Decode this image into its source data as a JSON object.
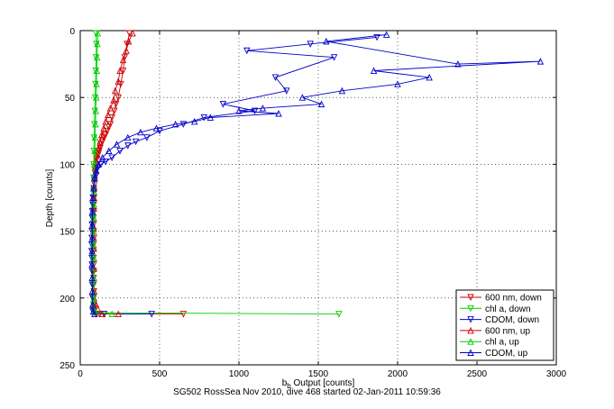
{
  "chart_data": {
    "type": "scatter",
    "xlabel": "b_b Output [counts]",
    "xlabel_main": "b",
    "xlabel_sub": "b",
    "xlabel_rest": " Output [counts]",
    "ylabel": "Depth [counts]",
    "footer": "SG502 RossSea Nov 2010, dive 468 started 02-Jan-2011 10:59:36",
    "xlim": [
      0,
      3000
    ],
    "ylim": [
      0,
      250
    ],
    "y_reversed": true,
    "grid": true,
    "legend_position": "bottom-right",
    "x_ticks": [
      0,
      500,
      1000,
      1500,
      2000,
      2500,
      3000
    ],
    "y_ticks": [
      0,
      50,
      100,
      150,
      200,
      250
    ],
    "series": [
      {
        "name": "600 nm, down",
        "color": "#cc0000",
        "marker": "down",
        "x": [
          310,
          295,
          280,
          270,
          255,
          240,
          225,
          215,
          200,
          190,
          180,
          170,
          160,
          150,
          140,
          130,
          125,
          118,
          112,
          105,
          100,
          95,
          92,
          90,
          88,
          87,
          86,
          85,
          84,
          84,
          85,
          86,
          84,
          83,
          84,
          85,
          86,
          84,
          85,
          86,
          84,
          86,
          85,
          88,
          100,
          120,
          650
        ],
        "y": [
          2,
          10,
          20,
          30,
          40,
          50,
          55,
          60,
          65,
          70,
          72,
          75,
          78,
          80,
          83,
          85,
          88,
          90,
          93,
          96,
          100,
          105,
          110,
          115,
          120,
          125,
          130,
          135,
          140,
          145,
          150,
          155,
          160,
          165,
          170,
          175,
          180,
          185,
          190,
          195,
          200,
          205,
          208,
          210,
          212,
          212,
          212
        ]
      },
      {
        "name": "chl a, down",
        "color": "#00cc00",
        "marker": "down",
        "x": [
          100,
          102,
          100,
          98,
          96,
          94,
          92,
          90,
          88,
          86,
          85,
          84,
          83,
          82,
          82,
          82,
          81,
          81,
          82,
          82,
          82,
          83,
          84,
          86,
          1630
        ],
        "y": [
          2,
          10,
          20,
          30,
          40,
          50,
          60,
          70,
          80,
          90,
          100,
          110,
          120,
          130,
          140,
          150,
          160,
          170,
          180,
          190,
          200,
          205,
          209,
          211,
          212
        ]
      },
      {
        "name": "CDOM, down",
        "color": "#0000cc",
        "marker": "down",
        "x": [
          1870,
          1450,
          1050,
          1600,
          1230,
          1300,
          900,
          1100,
          780,
          650,
          500,
          420,
          350,
          300,
          250,
          200,
          160,
          130,
          110,
          100,
          90,
          85,
          80,
          78,
          76,
          75,
          74,
          73,
          73,
          72,
          72,
          73,
          74,
          75,
          76,
          78,
          80,
          150,
          450
        ],
        "y": [
          5,
          10,
          15,
          20,
          35,
          45,
          55,
          60,
          65,
          70,
          75,
          80,
          83,
          86,
          90,
          95,
          98,
          100,
          103,
          108,
          112,
          118,
          125,
          130,
          135,
          140,
          145,
          150,
          155,
          160,
          165,
          170,
          175,
          180,
          190,
          200,
          210,
          212,
          212
        ]
      },
      {
        "name": "600 nm, up",
        "color": "#cc0000",
        "marker": "up",
        "x": [
          330,
          305,
          290,
          270,
          250,
          240,
          220,
          210,
          190,
          175,
          160,
          148,
          135,
          125,
          115,
          105,
          98,
          93,
          90,
          88,
          87,
          86,
          85,
          84,
          85,
          86,
          85,
          87,
          86,
          88,
          100,
          140,
          240
        ],
        "y": [
          2,
          8,
          15,
          22,
          30,
          38,
          45,
          52,
          58,
          63,
          68,
          73,
          78,
          83,
          88,
          93,
          98,
          103,
          110,
          118,
          125,
          133,
          140,
          148,
          155,
          163,
          170,
          178,
          185,
          195,
          205,
          212,
          212
        ]
      },
      {
        "name": "chl a, up",
        "color": "#00cc00",
        "marker": "up",
        "x": [
          110,
          108,
          106,
          104,
          102,
          100,
          98,
          96,
          94,
          92,
          90,
          88,
          87,
          86,
          85,
          84,
          84,
          85,
          86,
          88,
          90,
          200
        ],
        "y": [
          2,
          10,
          20,
          30,
          40,
          50,
          60,
          70,
          80,
          90,
          100,
          110,
          120,
          130,
          140,
          150,
          160,
          170,
          185,
          200,
          210,
          212
        ]
      },
      {
        "name": "CDOM, up",
        "color": "#0000cc",
        "marker": "up",
        "x": [
          1930,
          1550,
          2380,
          2900,
          1850,
          2200,
          2000,
          1650,
          1400,
          1520,
          1150,
          1000,
          1250,
          820,
          720,
          600,
          480,
          380,
          300,
          230,
          180,
          140,
          115,
          100,
          90,
          84,
          80,
          78,
          77,
          76,
          75,
          74,
          75,
          76,
          78,
          82,
          90
        ],
        "y": [
          3,
          8,
          25,
          23,
          30,
          35,
          40,
          45,
          50,
          55,
          58,
          60,
          62,
          65,
          68,
          70,
          73,
          76,
          80,
          85,
          90,
          95,
          100,
          105,
          110,
          118,
          125,
          135,
          145,
          155,
          165,
          175,
          185,
          195,
          205,
          210,
          212
        ]
      }
    ]
  }
}
